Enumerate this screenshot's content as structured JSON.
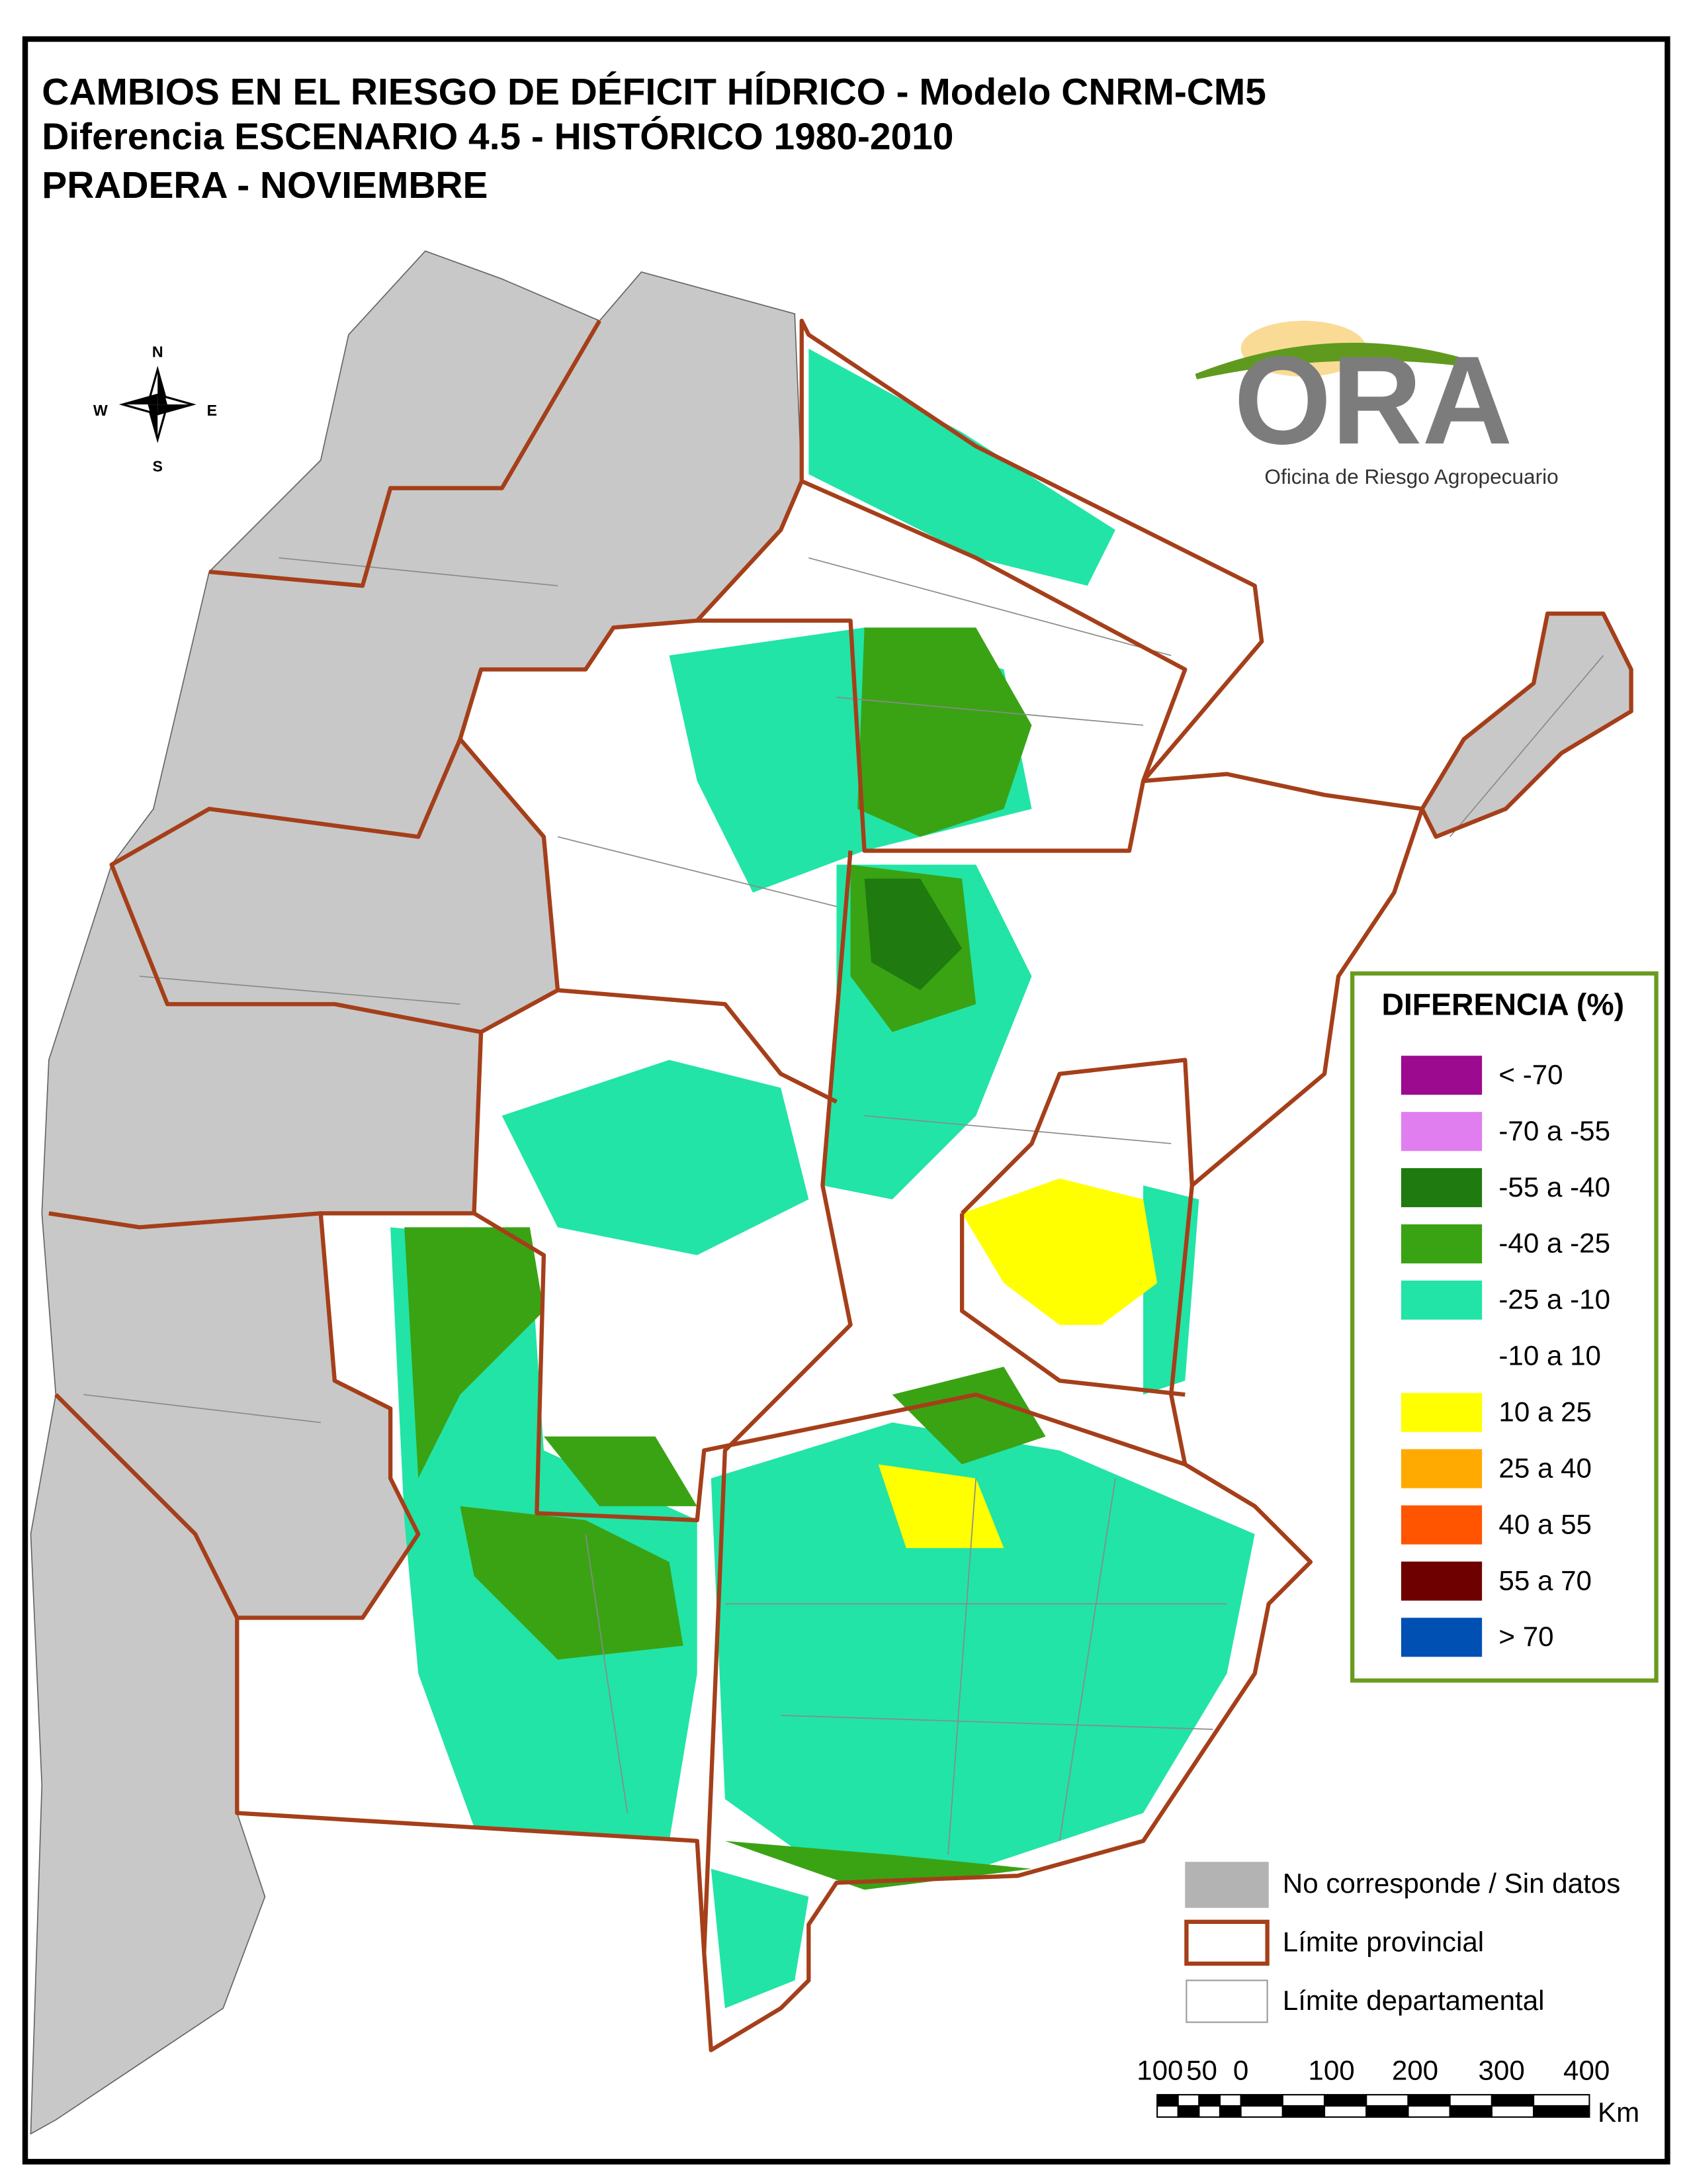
{
  "title_lines": [
    "CAMBIOS EN EL RIESGO DE DÉFICIT HÍDRICO - Modelo CNRM-CM5",
    "Diferencia ESCENARIO 4.5 - HISTÓRICO 1980-2010",
    "PRADERA - NOVIEMBRE"
  ],
  "compass": {
    "n": "N",
    "s": "S",
    "e": "E",
    "w": "W"
  },
  "logo": {
    "name": "ORA",
    "subtitle": "Oficina de Riesgo Agropecuario"
  },
  "legend": {
    "title": "DIFERENCIA (%)",
    "items": [
      {
        "label": "< -70",
        "color": "#9c0a8f"
      },
      {
        "label": "-70 a -55",
        "color": "#e07ef0"
      },
      {
        "label": "-55 a -40",
        "color": "#1f7a0f"
      },
      {
        "label": "-40 a -25",
        "color": "#3aa314"
      },
      {
        "label": "-25 a -10",
        "color": "#22e4a6"
      },
      {
        "label": "-10 a 10",
        "color": "#ffffff"
      },
      {
        "label": "10 a 25",
        "color": "#ffff00"
      },
      {
        "label": "25 a 40",
        "color": "#ffaa00"
      },
      {
        "label": "40 a 55",
        "color": "#ff5500"
      },
      {
        "label": "55 a 70",
        "color": "#6e0000"
      },
      {
        "label": "> 70",
        "color": "#0050b4"
      }
    ]
  },
  "reference_legend": [
    {
      "label": "No corresponde / Sin datos",
      "color": "#b3b3b3"
    },
    {
      "label": "Límite provincial",
      "color": "#a53f1a"
    },
    {
      "label": "Límite departamental",
      "color": "#9a9a9a"
    }
  ],
  "scale_bar": {
    "labels": [
      "100",
      "50",
      "0",
      "100",
      "200",
      "300",
      "400"
    ],
    "unit": "Km"
  }
}
